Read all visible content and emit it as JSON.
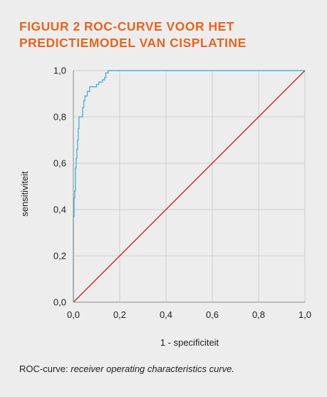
{
  "figure": {
    "title_line1": "FIGUUR 2  ROC-CURVE VOOR HET",
    "title_line2": "PREDICTIEMODEL VAN CISPLATINE",
    "caption_prefix": "ROC-curve: ",
    "caption_italic": "receiver operating characteristics curve.",
    "title_color": "#e8641e",
    "background_color": "#eeeded"
  },
  "chart_data": {
    "type": "line",
    "title": "",
    "xlabel": "1 - specificiteit",
    "ylabel": "sensitiviteit",
    "xlim": [
      0,
      1
    ],
    "ylim": [
      0,
      1
    ],
    "xticks": [
      "0,0",
      "0,2",
      "0,4",
      "0,6",
      "0,8",
      "1,0"
    ],
    "yticks": [
      "0,0",
      "0,2",
      "0,4",
      "0,6",
      "0,8",
      "1,0"
    ],
    "grid": true,
    "series": [
      {
        "color": "#4db3de",
        "x": [
          0,
          0,
          0.003,
          0.003,
          0.006,
          0.006,
          0.009,
          0.009,
          0.012,
          0.012,
          0.015,
          0.015,
          0.018,
          0.018,
          0.021,
          0.021,
          0.024,
          0.024,
          0.03,
          0.03,
          0.04,
          0.04,
          0.045,
          0.045,
          0.05,
          0.05,
          0.06,
          0.06,
          0.07,
          0.07,
          0.1,
          0.1,
          0.11,
          0.11,
          0.125,
          0.125,
          0.135,
          0.135,
          0.14,
          0.14,
          0.15,
          0.15,
          1.0
        ],
        "y": [
          0,
          0.37,
          0.37,
          0.45,
          0.45,
          0.48,
          0.48,
          0.58,
          0.58,
          0.62,
          0.62,
          0.66,
          0.66,
          0.7,
          0.7,
          0.75,
          0.75,
          0.8,
          0.8,
          0.8,
          0.8,
          0.84,
          0.84,
          0.87,
          0.87,
          0.89,
          0.89,
          0.91,
          0.91,
          0.93,
          0.93,
          0.94,
          0.94,
          0.95,
          0.95,
          0.96,
          0.96,
          0.97,
          0.97,
          0.99,
          0.99,
          1.0,
          1.0
        ]
      },
      {
        "color": "#d7261e",
        "x": [
          0,
          1
        ],
        "y": [
          0,
          1
        ]
      }
    ]
  }
}
